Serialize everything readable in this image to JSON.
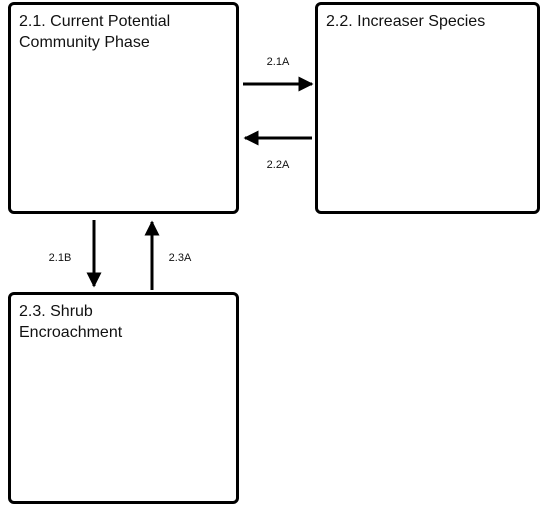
{
  "nodes": [
    {
      "label_lines": [
        "2.1. Current Potential",
        "Community Phase"
      ]
    },
    {
      "label_lines": [
        "2.2. Increaser Species"
      ]
    },
    {
      "label_lines": [
        "2.3. Shrub",
        "Encroachment"
      ]
    }
  ],
  "edges": [
    {
      "label": "2.1A"
    },
    {
      "label": "2.2A"
    },
    {
      "label": "2.1B"
    },
    {
      "label": "2.3A"
    }
  ]
}
